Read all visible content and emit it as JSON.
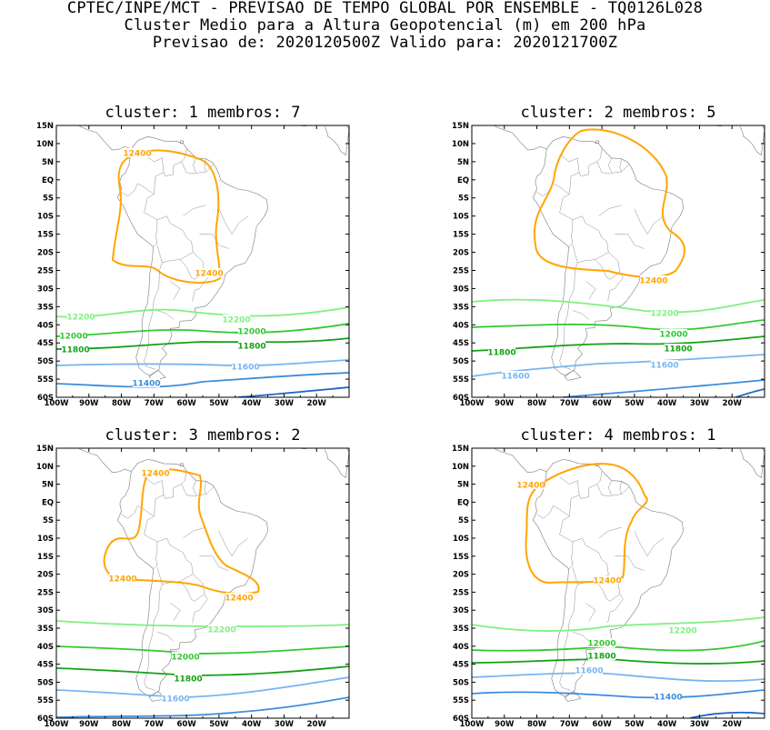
{
  "header": {
    "line1": "CPTEC/INPE/MCT - PREVISAO DE TEMPO GLOBAL POR ENSEMBLE - TQ0126L028",
    "line2": "Cluster Medio para a Altura Geopotencial (m) em 200 hPa",
    "line3": "Previsao de: 2020120500Z   Valido para: 2020121700Z"
  },
  "axes": {
    "lat_ticks": [
      "15N",
      "10N",
      "5N",
      "EQ",
      "5S",
      "10S",
      "15S",
      "20S",
      "25S",
      "30S",
      "35S",
      "40S",
      "45S",
      "50S",
      "55S",
      "60S"
    ],
    "lon_ticks": [
      "100W",
      "90W",
      "80W",
      "70W",
      "60W",
      "50W",
      "40W",
      "30W",
      "20W"
    ]
  },
  "colors": {
    "c12400": "#ffa500",
    "c12200": "#7ff07f",
    "c12000": "#32c832",
    "c11800": "#14a014",
    "c11600": "#78b4f0",
    "c11400": "#3c8cdc",
    "c11200": "#1e64c8",
    "coast": "#8c8c8c"
  },
  "panels": [
    {
      "title": "cluster: 1   membros: 7",
      "labels": {
        "l12400a": "12400",
        "l12400b": "12400",
        "l12200a": "12200",
        "l12200b": "12200",
        "l12000a": "12000",
        "l12000b": "12000",
        "l11800a": "11800",
        "l11800b": "11800",
        "l11600": "11600",
        "l11400": "11400"
      }
    },
    {
      "title": "cluster: 2   membros: 5",
      "labels": {
        "l12400": "12400",
        "l12200": "12200",
        "l12000": "12000",
        "l11800a": "11800",
        "l11800b": "11800",
        "l11600a": "11600",
        "l11600b": "11600"
      }
    },
    {
      "title": "cluster: 3   membros: 2",
      "labels": {
        "l12400a": "12400",
        "l12400b": "12400",
        "l12400c": "12400",
        "l12200": "12200",
        "l12000": "12000",
        "l11800": "11800",
        "l11600": "11600"
      }
    },
    {
      "title": "cluster: 4   membros: 1",
      "labels": {
        "l12400a": "12400",
        "l12400b": "12400",
        "l12200": "12200",
        "l12000": "12000",
        "l11800": "11800",
        "l11600": "11600",
        "l11400": "11400"
      }
    }
  ]
}
